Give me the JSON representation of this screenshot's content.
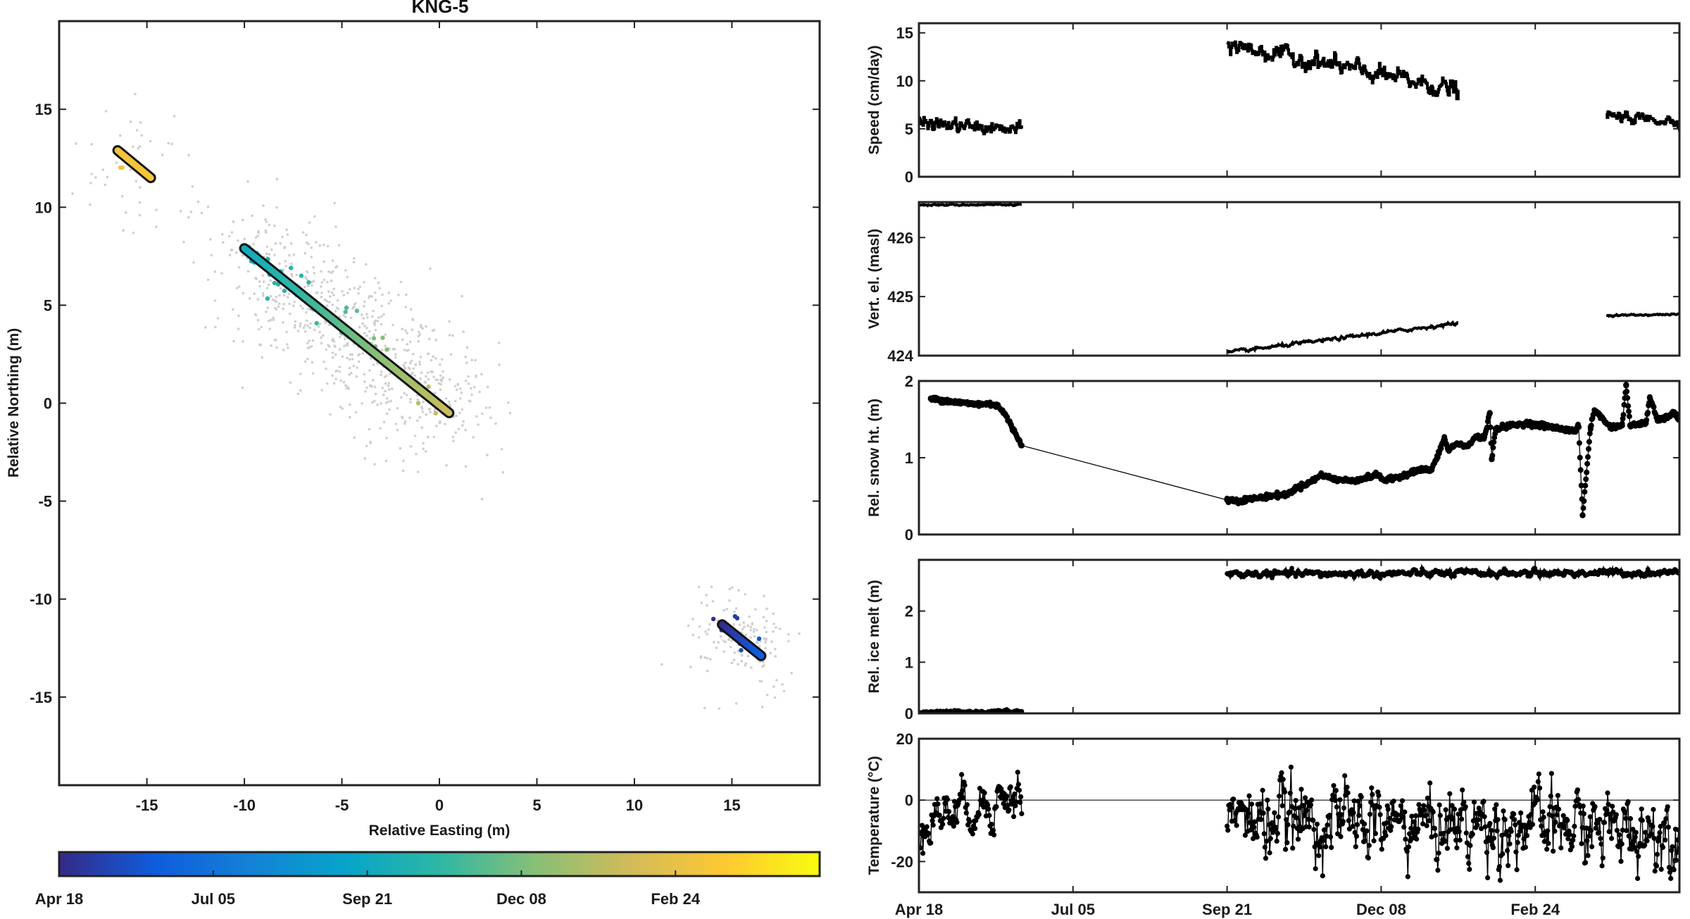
{
  "chart_data": [
    {
      "type": "scatter",
      "title": "KNG-5",
      "xlabel": "Relative Easting (m)",
      "ylabel": "Relative Northing (m)",
      "xlim": [
        -19.5,
        19.5
      ],
      "ylim": [
        -19.5,
        19.5
      ],
      "xticks": [
        -15,
        -10,
        -5,
        0,
        5,
        10,
        15
      ],
      "yticks": [
        -15,
        -10,
        -5,
        0,
        5,
        10,
        15
      ],
      "tracks": [
        {
          "x": [
            -16.5,
            -14.8
          ],
          "y": [
            12.9,
            11.5
          ],
          "t": [
            322,
            330
          ],
          "n_scatter": 45,
          "spread": 2.4
        },
        {
          "x": [
            -10.0,
            0.5
          ],
          "y": [
            7.9,
            -0.5
          ],
          "t": [
            158,
            285
          ],
          "n_scatter": 700,
          "spread": 2.2
        },
        {
          "x": [
            14.5,
            16.5
          ],
          "y": [
            -11.3,
            -12.9
          ],
          "t": [
            0,
            52
          ],
          "n_scatter": 130,
          "spread": 1.5
        }
      ],
      "scatter_color": "#cfcfcf"
    },
    {
      "type": "heatmap",
      "colormap": "parula",
      "colors": [
        "#352a87",
        "#0f5cdd",
        "#1481d6",
        "#06a4ca",
        "#2eb7a4",
        "#87bf77",
        "#d1bb59",
        "#fec832",
        "#f9fb0e"
      ],
      "tick_labels": [
        "Apr 18",
        "Jul 05",
        "Sep 21",
        "Dec 08",
        "Feb 24"
      ],
      "tick_days": [
        0,
        78,
        156,
        234,
        312
      ],
      "range_days": [
        0,
        385
      ]
    },
    {
      "type": "line",
      "ylabel": "Speed (cm/day)",
      "xlim_days": [
        0,
        385
      ],
      "ylim": [
        0,
        16
      ],
      "yticks": [
        0,
        5,
        10,
        15
      ],
      "segments": [
        {
          "start": 0,
          "end": 52,
          "y0": 5.6,
          "y1": 4.8,
          "noise": 0.5
        },
        {
          "start": 156,
          "end": 273,
          "y0": 13.8,
          "y1": 9.0,
          "noise": 0.7
        },
        {
          "start": 348,
          "end": 385,
          "y0": 6.3,
          "y1": 5.8,
          "noise": 0.4
        }
      ]
    },
    {
      "type": "line",
      "ylabel": "Vert. el. (masl)",
      "xlim_days": [
        0,
        385
      ],
      "ylim": [
        424.0,
        426.6
      ],
      "yticks": [
        424,
        425,
        426
      ],
      "segments": [
        {
          "start": 0,
          "end": 52,
          "y0": 426.55,
          "y1": 426.56,
          "noise": 0.01
        },
        {
          "start": 156,
          "end": 273,
          "y0": 424.05,
          "y1": 424.55,
          "noise": 0.02
        },
        {
          "start": 348,
          "end": 385,
          "y0": 424.68,
          "y1": 424.7,
          "noise": 0.01
        }
      ]
    },
    {
      "type": "line",
      "ylabel": "Rel. snow ht. (m)",
      "xlim_days": [
        0,
        385
      ],
      "ylim": [
        0,
        2
      ],
      "yticks": [
        0,
        1,
        2
      ],
      "points": [
        [
          6,
          1.77
        ],
        [
          12,
          1.75
        ],
        [
          20,
          1.72
        ],
        [
          28,
          1.7
        ],
        [
          36,
          1.7
        ],
        [
          40,
          1.68
        ],
        [
          44,
          1.55
        ],
        [
          48,
          1.35
        ],
        [
          51,
          1.22
        ],
        [
          52,
          1.16
        ],
        [
          156,
          0.45
        ],
        [
          162,
          0.44
        ],
        [
          170,
          0.47
        ],
        [
          178,
          0.5
        ],
        [
          186,
          0.52
        ],
        [
          192,
          0.62
        ],
        [
          198,
          0.68
        ],
        [
          204,
          0.78
        ],
        [
          210,
          0.72
        ],
        [
          218,
          0.7
        ],
        [
          226,
          0.73
        ],
        [
          232,
          0.78
        ],
        [
          236,
          0.7
        ],
        [
          244,
          0.76
        ],
        [
          250,
          0.82
        ],
        [
          256,
          0.85
        ],
        [
          259,
          0.83
        ],
        [
          262,
          0.98
        ],
        [
          266,
          1.25
        ],
        [
          268,
          1.1
        ],
        [
          272,
          1.18
        ],
        [
          278,
          1.15
        ],
        [
          282,
          1.28
        ],
        [
          286,
          1.25
        ],
        [
          289,
          1.58
        ],
        [
          290,
          0.98
        ],
        [
          292,
          1.38
        ],
        [
          300,
          1.42
        ],
        [
          308,
          1.45
        ],
        [
          316,
          1.42
        ],
        [
          324,
          1.38
        ],
        [
          332,
          1.35
        ],
        [
          334,
          1.4
        ],
        [
          336,
          0.25
        ],
        [
          340,
          1.4
        ],
        [
          342,
          1.62
        ],
        [
          350,
          1.4
        ],
        [
          356,
          1.42
        ],
        [
          358,
          1.95
        ],
        [
          360,
          1.42
        ],
        [
          368,
          1.45
        ],
        [
          370,
          1.78
        ],
        [
          374,
          1.48
        ],
        [
          378,
          1.52
        ],
        [
          382,
          1.58
        ],
        [
          385,
          1.5
        ]
      ]
    },
    {
      "type": "line",
      "ylabel": "Rel. ice melt (m)",
      "xlim_days": [
        0,
        385
      ],
      "ylim": [
        0,
        3
      ],
      "yticks": [
        0,
        1,
        2
      ],
      "segments": [
        {
          "start": 0,
          "end": 52,
          "y0": 0.02,
          "y1": 0.04,
          "noise": 0.02
        },
        {
          "start": 156,
          "end": 385,
          "y0": 2.72,
          "y1": 2.75,
          "noise": 0.05
        }
      ]
    },
    {
      "type": "line",
      "ylabel": "Temperature (°C)",
      "xlim_days": [
        0,
        385
      ],
      "ylim": [
        -30,
        20
      ],
      "yticks": [
        -20,
        0,
        20
      ],
      "zero_line": true,
      "segments": [
        {
          "start": 0,
          "end": 52,
          "y0": -6,
          "y1": 2,
          "noise": 6
        },
        {
          "start": 156,
          "end": 385,
          "y0": -6,
          "y1": -10,
          "noise": 9
        }
      ],
      "xtick_labels": [
        "Apr 18",
        "Jul 05",
        "Sep 21",
        "Dec 08",
        "Feb 24"
      ],
      "xtick_days": [
        0,
        78,
        156,
        234,
        312
      ]
    }
  ]
}
